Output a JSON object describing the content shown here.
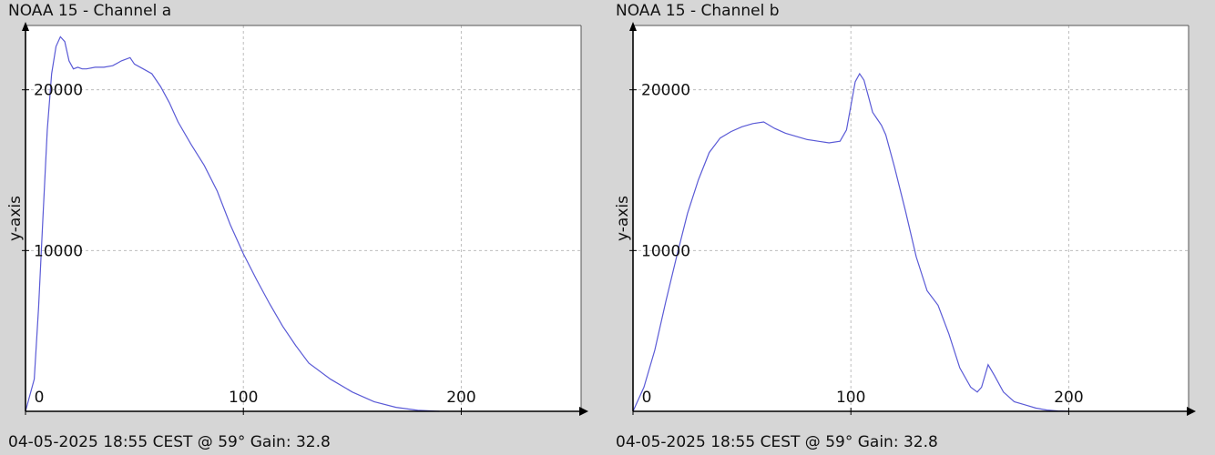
{
  "chart_data": [
    {
      "type": "line",
      "title": "NOAA 15 - Channel a",
      "footer": "04-05-2025 18:55 CEST @ 59° Gain: 32.8",
      "ylabel": "y-axis",
      "xlim": [
        0,
        255
      ],
      "ylim": [
        0,
        24000
      ],
      "x_ticks": [
        0,
        100,
        200
      ],
      "y_ticks": [
        10000,
        20000
      ],
      "x_tick_labels": [
        "0",
        "100",
        "200"
      ],
      "y_tick_labels": [
        "10000",
        "20000"
      ],
      "grid": true,
      "color": "#5a5ad6",
      "series": [
        {
          "x": [
            0,
            4,
            6,
            8,
            10,
            12,
            14,
            16,
            18,
            20,
            22,
            24,
            26,
            28,
            32,
            36,
            40,
            44,
            48,
            50,
            54,
            58,
            62,
            66,
            70,
            76,
            82,
            88,
            94,
            100,
            106,
            112,
            118,
            124,
            130,
            140,
            150,
            160,
            170,
            180,
            190
          ],
          "y": [
            0,
            2000,
            6500,
            12000,
            17500,
            21000,
            22700,
            23300,
            23000,
            21800,
            21300,
            21400,
            21300,
            21300,
            21400,
            21400,
            21500,
            21800,
            22000,
            21600,
            21300,
            21000,
            20200,
            19200,
            18000,
            16600,
            15300,
            13700,
            11600,
            9800,
            8200,
            6700,
            5300,
            4100,
            3000,
            2000,
            1200,
            600,
            250,
            60,
            0
          ]
        }
      ]
    },
    {
      "type": "line",
      "title": "NOAA 15 - Channel b",
      "footer": "04-05-2025 18:55 CEST @ 59° Gain: 32.8",
      "ylabel": "y-axis",
      "xlim": [
        0,
        255
      ],
      "ylim": [
        0,
        24000
      ],
      "x_ticks": [
        0,
        100,
        200
      ],
      "y_ticks": [
        10000,
        20000
      ],
      "x_tick_labels": [
        "0",
        "100",
        "200"
      ],
      "y_tick_labels": [
        "10000",
        "20000"
      ],
      "grid": true,
      "color": "#5a5ad6",
      "series": [
        {
          "x": [
            0,
            5,
            10,
            15,
            20,
            25,
            30,
            35,
            40,
            45,
            50,
            55,
            60,
            65,
            70,
            75,
            80,
            85,
            90,
            95,
            98,
            100,
            102,
            104,
            106,
            108,
            110,
            112,
            114,
            116,
            120,
            125,
            130,
            135,
            140,
            145,
            150,
            155,
            158,
            160,
            163,
            166,
            170,
            175,
            180,
            185,
            190,
            195,
            200
          ],
          "y": [
            0,
            1500,
            3800,
            6800,
            9600,
            12300,
            14400,
            16100,
            17000,
            17400,
            17700,
            17900,
            18000,
            17600,
            17300,
            17100,
            16900,
            16800,
            16700,
            16800,
            17500,
            19000,
            20500,
            21000,
            20600,
            19600,
            18600,
            18200,
            17800,
            17200,
            15200,
            12500,
            9600,
            7500,
            6600,
            4800,
            2700,
            1500,
            1200,
            1500,
            2900,
            2200,
            1200,
            600,
            400,
            200,
            80,
            20,
            0
          ]
        }
      ]
    }
  ]
}
